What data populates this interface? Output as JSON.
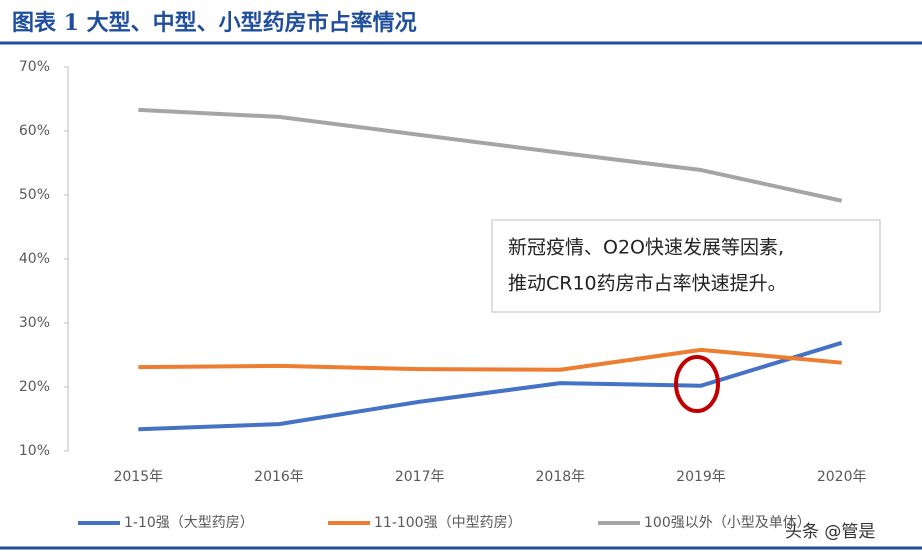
{
  "chart_data": {
    "type": "line",
    "title": "图表 1   大型、中型、小型药房市占率情况",
    "categories": [
      "2015年",
      "2016年",
      "2017年",
      "2018年",
      "2019年",
      "2020年"
    ],
    "series": [
      {
        "name": "1-10强（大型药房）",
        "color": "#4472c4",
        "values": [
          13.4,
          14.2,
          17.7,
          20.6,
          20.2,
          26.9
        ]
      },
      {
        "name": "11-100强（中型药房）",
        "color": "#ed7d31",
        "values": [
          23.1,
          23.3,
          22.8,
          22.7,
          25.8,
          23.8
        ]
      },
      {
        "name": "100强以外（小型及单体）",
        "color": "#a5a5a5",
        "values": [
          63.3,
          62.2,
          59.4,
          56.6,
          53.9,
          49.1
        ]
      }
    ],
    "ylim": [
      10,
      70
    ],
    "yticks": [
      {
        "value": 10,
        "label": "10%"
      },
      {
        "value": 20,
        "label": "20%"
      },
      {
        "value": 30,
        "label": "30%"
      },
      {
        "value": 40,
        "label": "40%"
      },
      {
        "value": 50,
        "label": "50%"
      },
      {
        "value": 60,
        "label": "60%"
      },
      {
        "value": 70,
        "label": "70%"
      }
    ],
    "annotation": [
      "新冠疫情、O2O快速发展等因素,",
      "推动CR10药房市占率快速提升。"
    ],
    "watermark": "头条 @管是"
  }
}
